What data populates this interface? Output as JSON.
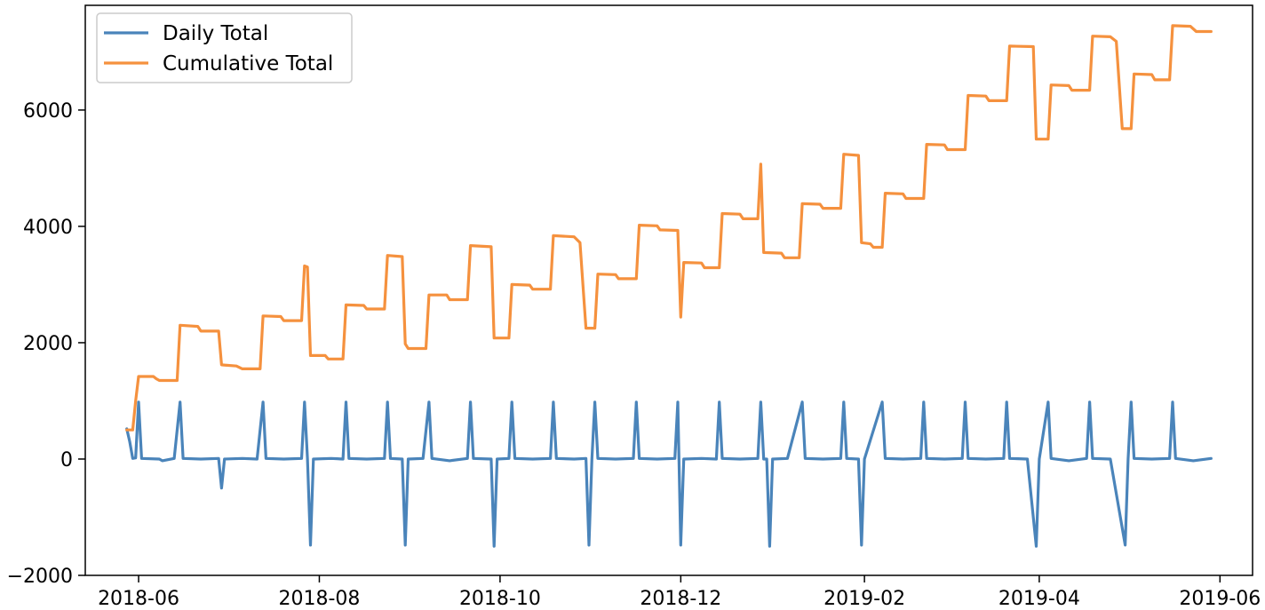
{
  "chart_data": {
    "type": "line",
    "title": "",
    "xlabel": "",
    "ylabel": "",
    "x_range": [
      "2018-05-14",
      "2019-06-12"
    ],
    "ylim": [
      -2000,
      7800
    ],
    "x_ticks": [
      "2018-06",
      "2018-08",
      "2018-10",
      "2018-12",
      "2019-02",
      "2019-04",
      "2019-06"
    ],
    "y_ticks": [
      -2000,
      0,
      2000,
      4000,
      6000
    ],
    "grid": false,
    "legend_position": "top-left",
    "series": [
      {
        "name": "Daily Total",
        "color": "#4a84ba",
        "points": [
          [
            "2018-05-28",
            520
          ],
          [
            "2018-05-29",
            300
          ],
          [
            "2018-05-30",
            10
          ],
          [
            "2018-05-31",
            20
          ],
          [
            "2018-06-01",
            980
          ],
          [
            "2018-06-02",
            10
          ],
          [
            "2018-06-08",
            0
          ],
          [
            "2018-06-09",
            -30
          ],
          [
            "2018-06-13",
            10
          ],
          [
            "2018-06-15",
            980
          ],
          [
            "2018-06-16",
            10
          ],
          [
            "2018-06-22",
            0
          ],
          [
            "2018-06-28",
            10
          ],
          [
            "2018-06-29",
            -500
          ],
          [
            "2018-06-30",
            0
          ],
          [
            "2018-07-06",
            10
          ],
          [
            "2018-07-11",
            0
          ],
          [
            "2018-07-13",
            980
          ],
          [
            "2018-07-14",
            10
          ],
          [
            "2018-07-20",
            0
          ],
          [
            "2018-07-26",
            10
          ],
          [
            "2018-07-27",
            980
          ],
          [
            "2018-07-28",
            10
          ],
          [
            "2018-07-29",
            -1480
          ],
          [
            "2018-07-30",
            0
          ],
          [
            "2018-08-05",
            10
          ],
          [
            "2018-08-09",
            0
          ],
          [
            "2018-08-10",
            980
          ],
          [
            "2018-08-11",
            10
          ],
          [
            "2018-08-17",
            0
          ],
          [
            "2018-08-23",
            10
          ],
          [
            "2018-08-24",
            980
          ],
          [
            "2018-08-25",
            10
          ],
          [
            "2018-08-29",
            0
          ],
          [
            "2018-08-30",
            -1480
          ],
          [
            "2018-08-31",
            0
          ],
          [
            "2018-09-05",
            10
          ],
          [
            "2018-09-07",
            980
          ],
          [
            "2018-09-08",
            10
          ],
          [
            "2018-09-14",
            -30
          ],
          [
            "2018-09-20",
            10
          ],
          [
            "2018-09-21",
            980
          ],
          [
            "2018-09-22",
            10
          ],
          [
            "2018-09-28",
            0
          ],
          [
            "2018-09-29",
            -1500
          ],
          [
            "2018-09-30",
            0
          ],
          [
            "2018-10-04",
            10
          ],
          [
            "2018-10-05",
            980
          ],
          [
            "2018-10-06",
            10
          ],
          [
            "2018-10-12",
            0
          ],
          [
            "2018-10-18",
            10
          ],
          [
            "2018-10-19",
            980
          ],
          [
            "2018-10-20",
            10
          ],
          [
            "2018-10-26",
            0
          ],
          [
            "2018-10-30",
            10
          ],
          [
            "2018-10-31",
            -1480
          ],
          [
            "2018-11-01",
            0
          ],
          [
            "2018-11-02",
            980
          ],
          [
            "2018-11-03",
            10
          ],
          [
            "2018-11-09",
            0
          ],
          [
            "2018-11-15",
            10
          ],
          [
            "2018-11-16",
            980
          ],
          [
            "2018-11-17",
            10
          ],
          [
            "2018-11-23",
            0
          ],
          [
            "2018-11-29",
            10
          ],
          [
            "2018-11-30",
            980
          ],
          [
            "2018-12-01",
            -1480
          ],
          [
            "2018-12-02",
            0
          ],
          [
            "2018-12-08",
            10
          ],
          [
            "2018-12-13",
            0
          ],
          [
            "2018-12-14",
            980
          ],
          [
            "2018-12-15",
            10
          ],
          [
            "2018-12-21",
            0
          ],
          [
            "2018-12-27",
            10
          ],
          [
            "2018-12-28",
            980
          ],
          [
            "2018-12-29",
            0
          ],
          [
            "2018-12-30",
            0
          ],
          [
            "2018-12-31",
            -1500
          ],
          [
            "2019-01-01",
            0
          ],
          [
            "2019-01-06",
            10
          ],
          [
            "2019-01-11",
            980
          ],
          [
            "2019-01-12",
            10
          ],
          [
            "2019-01-18",
            0
          ],
          [
            "2019-01-24",
            10
          ],
          [
            "2019-01-25",
            980
          ],
          [
            "2019-01-26",
            10
          ],
          [
            "2019-01-30",
            0
          ],
          [
            "2019-01-31",
            -1480
          ],
          [
            "2019-02-01",
            0
          ],
          [
            "2019-02-07",
            980
          ],
          [
            "2019-02-08",
            10
          ],
          [
            "2019-02-14",
            0
          ],
          [
            "2019-02-20",
            10
          ],
          [
            "2019-02-21",
            980
          ],
          [
            "2019-02-22",
            10
          ],
          [
            "2019-02-28",
            0
          ],
          [
            "2019-03-06",
            10
          ],
          [
            "2019-03-07",
            980
          ],
          [
            "2019-03-08",
            10
          ],
          [
            "2019-03-14",
            0
          ],
          [
            "2019-03-20",
            10
          ],
          [
            "2019-03-21",
            980
          ],
          [
            "2019-03-22",
            10
          ],
          [
            "2019-03-28",
            0
          ],
          [
            "2019-03-31",
            -1500
          ],
          [
            "2019-04-01",
            0
          ],
          [
            "2019-04-04",
            980
          ],
          [
            "2019-04-05",
            10
          ],
          [
            "2019-04-11",
            -30
          ],
          [
            "2019-04-17",
            10
          ],
          [
            "2019-04-18",
            980
          ],
          [
            "2019-04-19",
            10
          ],
          [
            "2019-04-25",
            0
          ],
          [
            "2019-04-30",
            -1480
          ],
          [
            "2019-05-01",
            0
          ],
          [
            "2019-05-02",
            980
          ],
          [
            "2019-05-03",
            10
          ],
          [
            "2019-05-09",
            0
          ],
          [
            "2019-05-15",
            10
          ],
          [
            "2019-05-16",
            980
          ],
          [
            "2019-05-17",
            10
          ],
          [
            "2019-05-23",
            -30
          ],
          [
            "2019-05-29",
            10
          ]
        ]
      },
      {
        "name": "Cumulative Total",
        "color": "#f5913e",
        "points": [
          [
            "2018-05-28",
            500
          ],
          [
            "2018-05-30",
            500
          ],
          [
            "2018-05-31",
            1000
          ],
          [
            "2018-06-01",
            1420
          ],
          [
            "2018-06-06",
            1420
          ],
          [
            "2018-06-07",
            1380
          ],
          [
            "2018-06-08",
            1350
          ],
          [
            "2018-06-14",
            1350
          ],
          [
            "2018-06-15",
            2300
          ],
          [
            "2018-06-21",
            2280
          ],
          [
            "2018-06-22",
            2200
          ],
          [
            "2018-06-28",
            2200
          ],
          [
            "2018-06-29",
            1620
          ],
          [
            "2018-07-04",
            1600
          ],
          [
            "2018-07-06",
            1550
          ],
          [
            "2018-07-12",
            1550
          ],
          [
            "2018-07-13",
            2460
          ],
          [
            "2018-07-19",
            2450
          ],
          [
            "2018-07-20",
            2380
          ],
          [
            "2018-07-26",
            2380
          ],
          [
            "2018-07-27",
            3320
          ],
          [
            "2018-07-28",
            3300
          ],
          [
            "2018-07-29",
            1780
          ],
          [
            "2018-08-03",
            1780
          ],
          [
            "2018-08-04",
            1720
          ],
          [
            "2018-08-09",
            1720
          ],
          [
            "2018-08-10",
            2650
          ],
          [
            "2018-08-16",
            2640
          ],
          [
            "2018-08-17",
            2580
          ],
          [
            "2018-08-23",
            2580
          ],
          [
            "2018-08-24",
            3500
          ],
          [
            "2018-08-29",
            3480
          ],
          [
            "2018-08-30",
            1980
          ],
          [
            "2018-08-31",
            1900
          ],
          [
            "2018-09-06",
            1900
          ],
          [
            "2018-09-07",
            2820
          ],
          [
            "2018-09-13",
            2820
          ],
          [
            "2018-09-14",
            2740
          ],
          [
            "2018-09-20",
            2740
          ],
          [
            "2018-09-21",
            3670
          ],
          [
            "2018-09-28",
            3650
          ],
          [
            "2018-09-29",
            2080
          ],
          [
            "2018-10-04",
            2080
          ],
          [
            "2018-10-05",
            3000
          ],
          [
            "2018-10-11",
            2990
          ],
          [
            "2018-10-12",
            2920
          ],
          [
            "2018-10-18",
            2920
          ],
          [
            "2018-10-19",
            3840
          ],
          [
            "2018-10-26",
            3820
          ],
          [
            "2018-10-28",
            3720
          ],
          [
            "2018-10-30",
            2250
          ],
          [
            "2018-11-02",
            2250
          ],
          [
            "2018-11-03",
            3180
          ],
          [
            "2018-11-09",
            3170
          ],
          [
            "2018-11-10",
            3100
          ],
          [
            "2018-11-16",
            3100
          ],
          [
            "2018-11-17",
            4020
          ],
          [
            "2018-11-23",
            4010
          ],
          [
            "2018-11-24",
            3940
          ],
          [
            "2018-11-30",
            3930
          ],
          [
            "2018-12-01",
            2440
          ],
          [
            "2018-12-02",
            3380
          ],
          [
            "2018-12-08",
            3370
          ],
          [
            "2018-12-09",
            3290
          ],
          [
            "2018-12-14",
            3290
          ],
          [
            "2018-12-15",
            4220
          ],
          [
            "2018-12-21",
            4210
          ],
          [
            "2018-12-22",
            4130
          ],
          [
            "2018-12-27",
            4130
          ],
          [
            "2018-12-28",
            5070
          ],
          [
            "2018-12-29",
            3550
          ],
          [
            "2019-01-04",
            3540
          ],
          [
            "2019-01-05",
            3460
          ],
          [
            "2019-01-10",
            3460
          ],
          [
            "2019-01-11",
            4390
          ],
          [
            "2019-01-17",
            4380
          ],
          [
            "2019-01-18",
            4310
          ],
          [
            "2019-01-24",
            4310
          ],
          [
            "2019-01-25",
            5240
          ],
          [
            "2019-01-30",
            5220
          ],
          [
            "2019-01-31",
            3720
          ],
          [
            "2019-02-03",
            3700
          ],
          [
            "2019-02-04",
            3640
          ],
          [
            "2019-02-07",
            3640
          ],
          [
            "2019-02-08",
            4570
          ],
          [
            "2019-02-14",
            4560
          ],
          [
            "2019-02-15",
            4480
          ],
          [
            "2019-02-21",
            4480
          ],
          [
            "2019-02-22",
            5410
          ],
          [
            "2019-02-28",
            5400
          ],
          [
            "2019-03-01",
            5320
          ],
          [
            "2019-03-07",
            5320
          ],
          [
            "2019-03-08",
            6250
          ],
          [
            "2019-03-14",
            6240
          ],
          [
            "2019-03-15",
            6160
          ],
          [
            "2019-03-21",
            6160
          ],
          [
            "2019-03-22",
            7100
          ],
          [
            "2019-03-30",
            7090
          ],
          [
            "2019-03-31",
            5500
          ],
          [
            "2019-04-04",
            5500
          ],
          [
            "2019-04-05",
            6430
          ],
          [
            "2019-04-11",
            6420
          ],
          [
            "2019-04-12",
            6340
          ],
          [
            "2019-04-18",
            6340
          ],
          [
            "2019-04-19",
            7270
          ],
          [
            "2019-04-25",
            7260
          ],
          [
            "2019-04-27",
            7180
          ],
          [
            "2019-04-29",
            5680
          ],
          [
            "2019-05-02",
            5680
          ],
          [
            "2019-05-03",
            6620
          ],
          [
            "2019-05-09",
            6610
          ],
          [
            "2019-05-10",
            6520
          ],
          [
            "2019-05-15",
            6520
          ],
          [
            "2019-05-16",
            7450
          ],
          [
            "2019-05-22",
            7440
          ],
          [
            "2019-05-24",
            7350
          ],
          [
            "2019-05-29",
            7350
          ]
        ]
      }
    ]
  }
}
